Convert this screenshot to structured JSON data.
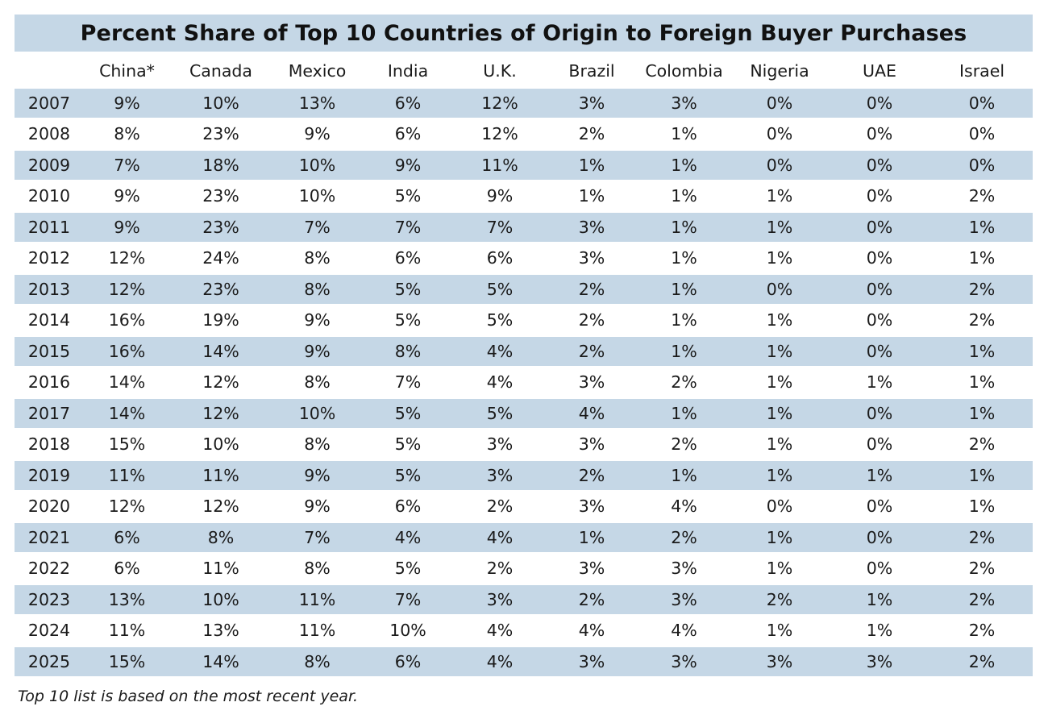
{
  "colors": {
    "band": "#c5d7e6",
    "text": "#1a1a1a"
  },
  "chart_data": {
    "type": "table",
    "title": "Percent Share of Top 10 Countries of Origin to Foreign Buyer Purchases",
    "columns": [
      "",
      "China*",
      "Canada",
      "Mexico",
      "India",
      "U.K.",
      "Brazil",
      "Colombia",
      "Nigeria",
      "UAE",
      "Israel"
    ],
    "rows": [
      {
        "year": "2007",
        "values": [
          "9%",
          "10%",
          "13%",
          "6%",
          "12%",
          "3%",
          "3%",
          "0%",
          "0%",
          "0%"
        ]
      },
      {
        "year": "2008",
        "values": [
          "8%",
          "23%",
          "9%",
          "6%",
          "12%",
          "2%",
          "1%",
          "0%",
          "0%",
          "0%"
        ]
      },
      {
        "year": "2009",
        "values": [
          "7%",
          "18%",
          "10%",
          "9%",
          "11%",
          "1%",
          "1%",
          "0%",
          "0%",
          "0%"
        ]
      },
      {
        "year": "2010",
        "values": [
          "9%",
          "23%",
          "10%",
          "5%",
          "9%",
          "1%",
          "1%",
          "1%",
          "0%",
          "2%"
        ]
      },
      {
        "year": "2011",
        "values": [
          "9%",
          "23%",
          "7%",
          "7%",
          "7%",
          "3%",
          "1%",
          "1%",
          "0%",
          "1%"
        ]
      },
      {
        "year": "2012",
        "values": [
          "12%",
          "24%",
          "8%",
          "6%",
          "6%",
          "3%",
          "1%",
          "1%",
          "0%",
          "1%"
        ]
      },
      {
        "year": "2013",
        "values": [
          "12%",
          "23%",
          "8%",
          "5%",
          "5%",
          "2%",
          "1%",
          "0%",
          "0%",
          "2%"
        ]
      },
      {
        "year": "2014",
        "values": [
          "16%",
          "19%",
          "9%",
          "5%",
          "5%",
          "2%",
          "1%",
          "1%",
          "0%",
          "2%"
        ]
      },
      {
        "year": "2015",
        "values": [
          "16%",
          "14%",
          "9%",
          "8%",
          "4%",
          "2%",
          "1%",
          "1%",
          "0%",
          "1%"
        ]
      },
      {
        "year": "2016",
        "values": [
          "14%",
          "12%",
          "8%",
          "7%",
          "4%",
          "3%",
          "2%",
          "1%",
          "1%",
          "1%"
        ]
      },
      {
        "year": "2017",
        "values": [
          "14%",
          "12%",
          "10%",
          "5%",
          "5%",
          "4%",
          "1%",
          "1%",
          "0%",
          "1%"
        ]
      },
      {
        "year": "2018",
        "values": [
          "15%",
          "10%",
          "8%",
          "5%",
          "3%",
          "3%",
          "2%",
          "1%",
          "0%",
          "2%"
        ]
      },
      {
        "year": "2019",
        "values": [
          "11%",
          "11%",
          "9%",
          "5%",
          "3%",
          "2%",
          "1%",
          "1%",
          "1%",
          "1%"
        ]
      },
      {
        "year": "2020",
        "values": [
          "12%",
          "12%",
          "9%",
          "6%",
          "2%",
          "3%",
          "4%",
          "0%",
          "0%",
          "1%"
        ]
      },
      {
        "year": "2021",
        "values": [
          "6%",
          "8%",
          "7%",
          "4%",
          "4%",
          "1%",
          "2%",
          "1%",
          "0%",
          "2%"
        ]
      },
      {
        "year": "2022",
        "values": [
          "6%",
          "11%",
          "8%",
          "5%",
          "2%",
          "3%",
          "3%",
          "1%",
          "0%",
          "2%"
        ]
      },
      {
        "year": "2023",
        "values": [
          "13%",
          "10%",
          "11%",
          "7%",
          "3%",
          "2%",
          "3%",
          "2%",
          "1%",
          "2%"
        ]
      },
      {
        "year": "2024",
        "values": [
          "11%",
          "13%",
          "11%",
          "10%",
          "4%",
          "4%",
          "4%",
          "1%",
          "1%",
          "2%"
        ]
      },
      {
        "year": "2025",
        "values": [
          "15%",
          "14%",
          "8%",
          "6%",
          "4%",
          "3%",
          "3%",
          "3%",
          "3%",
          "2%"
        ]
      }
    ],
    "footnote": "Top 10 list is based on the most recent year."
  }
}
